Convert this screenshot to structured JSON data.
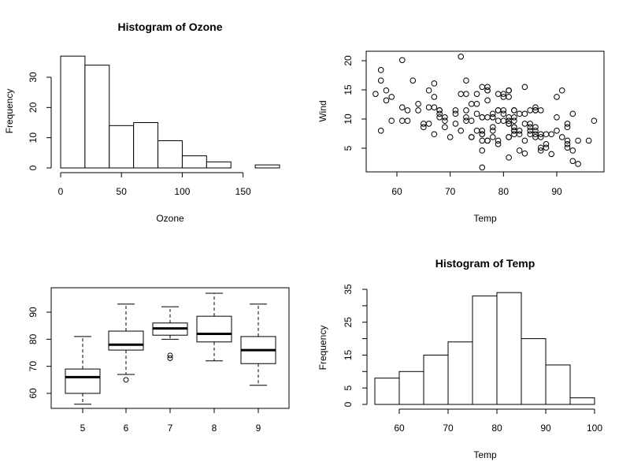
{
  "chart_data": [
    {
      "type": "bar",
      "title": "Histogram of Ozone",
      "xlabel": "Ozone",
      "ylabel": "Frequency",
      "bin_edges": [
        0,
        20,
        40,
        60,
        80,
        100,
        120,
        140,
        160,
        180
      ],
      "values": [
        37,
        34,
        14,
        15,
        9,
        4,
        2,
        0,
        1
      ],
      "xticks": [
        "0",
        "50",
        "100",
        "150"
      ],
      "yticks": [
        "0",
        "10",
        "20",
        "30"
      ]
    },
    {
      "type": "scatter",
      "title": "",
      "xlabel": "Temp",
      "ylabel": "Wind",
      "xticks": [
        "60",
        "70",
        "80",
        "90"
      ],
      "yticks": [
        "5",
        "10",
        "15",
        "20"
      ],
      "x": [
        67,
        72,
        74,
        62,
        56,
        66,
        65,
        59,
        61,
        69,
        74,
        69,
        66,
        68,
        58,
        64,
        66,
        57,
        68,
        62,
        59,
        73,
        61,
        61,
        57,
        58,
        57,
        67,
        81,
        79,
        76,
        78,
        74,
        67,
        84,
        85,
        79,
        82,
        87,
        90,
        87,
        93,
        92,
        82,
        80,
        79,
        77,
        72,
        65,
        73,
        76,
        77,
        76,
        76,
        76,
        75,
        78,
        73,
        80,
        77,
        83,
        84,
        85,
        81,
        84,
        83,
        83,
        88,
        92,
        92,
        89,
        82,
        73,
        81,
        91,
        80,
        81,
        82,
        84,
        87,
        85,
        74,
        81,
        82,
        86,
        85,
        82,
        86,
        88,
        86,
        83,
        81,
        81,
        81,
        82,
        86,
        85,
        87,
        89,
        90,
        90,
        92,
        86,
        86,
        82,
        80,
        79,
        77,
        79,
        76,
        78,
        78,
        77,
        72,
        75,
        79,
        81,
        86,
        88,
        97,
        94,
        96,
        94,
        91,
        92,
        93,
        93,
        87,
        84,
        80,
        78,
        75,
        73,
        81,
        76,
        77,
        71,
        71,
        78,
        67,
        76,
        68,
        82,
        64,
        71,
        81,
        69,
        63,
        70,
        77,
        75,
        76,
        68
      ],
      "y": [
        7.4,
        8.0,
        12.6,
        11.5,
        14.3,
        14.9,
        8.6,
        13.8,
        20.1,
        8.6,
        6.9,
        9.7,
        9.2,
        10.9,
        13.2,
        11.5,
        12.0,
        18.4,
        11.5,
        9.7,
        9.7,
        16.6,
        9.7,
        12.0,
        16.6,
        14.9,
        8.0,
        12.0,
        14.9,
        5.7,
        7.4,
        8.6,
        9.7,
        16.1,
        9.2,
        8.6,
        14.3,
        9.7,
        6.9,
        13.8,
        11.5,
        10.9,
        9.2,
        8.0,
        13.8,
        11.5,
        14.9,
        20.7,
        9.2,
        11.5,
        10.3,
        6.3,
        1.7,
        4.6,
        6.3,
        8.0,
        8.0,
        10.3,
        11.5,
        14.9,
        8.0,
        4.1,
        9.2,
        9.2,
        10.9,
        4.6,
        10.9,
        5.1,
        6.3,
        5.7,
        7.4,
        8.6,
        14.3,
        14.9,
        14.9,
        14.3,
        6.9,
        10.3,
        6.3,
        5.1,
        11.5,
        6.9,
        9.7,
        11.5,
        8.6,
        8.0,
        8.6,
        12.0,
        7.4,
        7.4,
        7.4,
        9.2,
        6.9,
        13.8,
        7.4,
        6.9,
        7.4,
        4.6,
        4.0,
        10.3,
        8.0,
        8.6,
        11.5,
        11.5,
        11.5,
        9.7,
        11.5,
        10.3,
        6.3,
        7.4,
        10.9,
        10.3,
        15.5,
        14.3,
        12.6,
        9.7,
        3.4,
        8.0,
        5.7,
        9.7,
        2.3,
        6.3,
        6.3,
        6.9,
        5.1,
        2.8,
        4.6,
        7.4,
        15.5,
        10.9,
        10.3,
        10.9,
        9.7,
        14.9,
        15.5,
        6.3,
        10.9,
        11.5,
        6.9,
        13.8,
        10.3,
        10.3,
        8.0,
        12.6,
        9.2,
        10.3,
        10.3,
        16.6,
        6.9,
        13.2,
        14.3,
        8.0,
        11.5
      ]
    },
    {
      "type": "boxplot",
      "title": "",
      "categories": [
        "5",
        "6",
        "7",
        "8",
        "9"
      ],
      "yticks": [
        "60",
        "70",
        "80",
        "90"
      ],
      "stats": [
        {
          "whisker_low": 56,
          "q1": 60,
          "median": 66,
          "q3": 69,
          "whisker_high": 81,
          "outliers": []
        },
        {
          "whisker_low": 67,
          "q1": 76,
          "median": 78,
          "q3": 83,
          "whisker_high": 93,
          "outliers": [
            65
          ]
        },
        {
          "whisker_low": 80,
          "q1": 81.5,
          "median": 84,
          "q3": 86,
          "whisker_high": 92,
          "outliers": [
            73,
            74
          ]
        },
        {
          "whisker_low": 72,
          "q1": 79,
          "median": 82,
          "q3": 88.5,
          "whisker_high": 97,
          "outliers": []
        },
        {
          "whisker_low": 63,
          "q1": 71,
          "median": 76,
          "q3": 81,
          "whisker_high": 93,
          "outliers": []
        }
      ]
    },
    {
      "type": "bar",
      "title": "Histogram of Temp",
      "xlabel": "Temp",
      "ylabel": "Frequency",
      "bin_edges": [
        55,
        60,
        65,
        70,
        75,
        80,
        85,
        90,
        95,
        100
      ],
      "values": [
        8,
        10,
        15,
        19,
        33,
        34,
        20,
        12,
        2
      ],
      "xticks": [
        "60",
        "70",
        "80",
        "90",
        "100"
      ],
      "yticks": [
        "0",
        "5",
        "15",
        "25",
        "35"
      ]
    }
  ]
}
